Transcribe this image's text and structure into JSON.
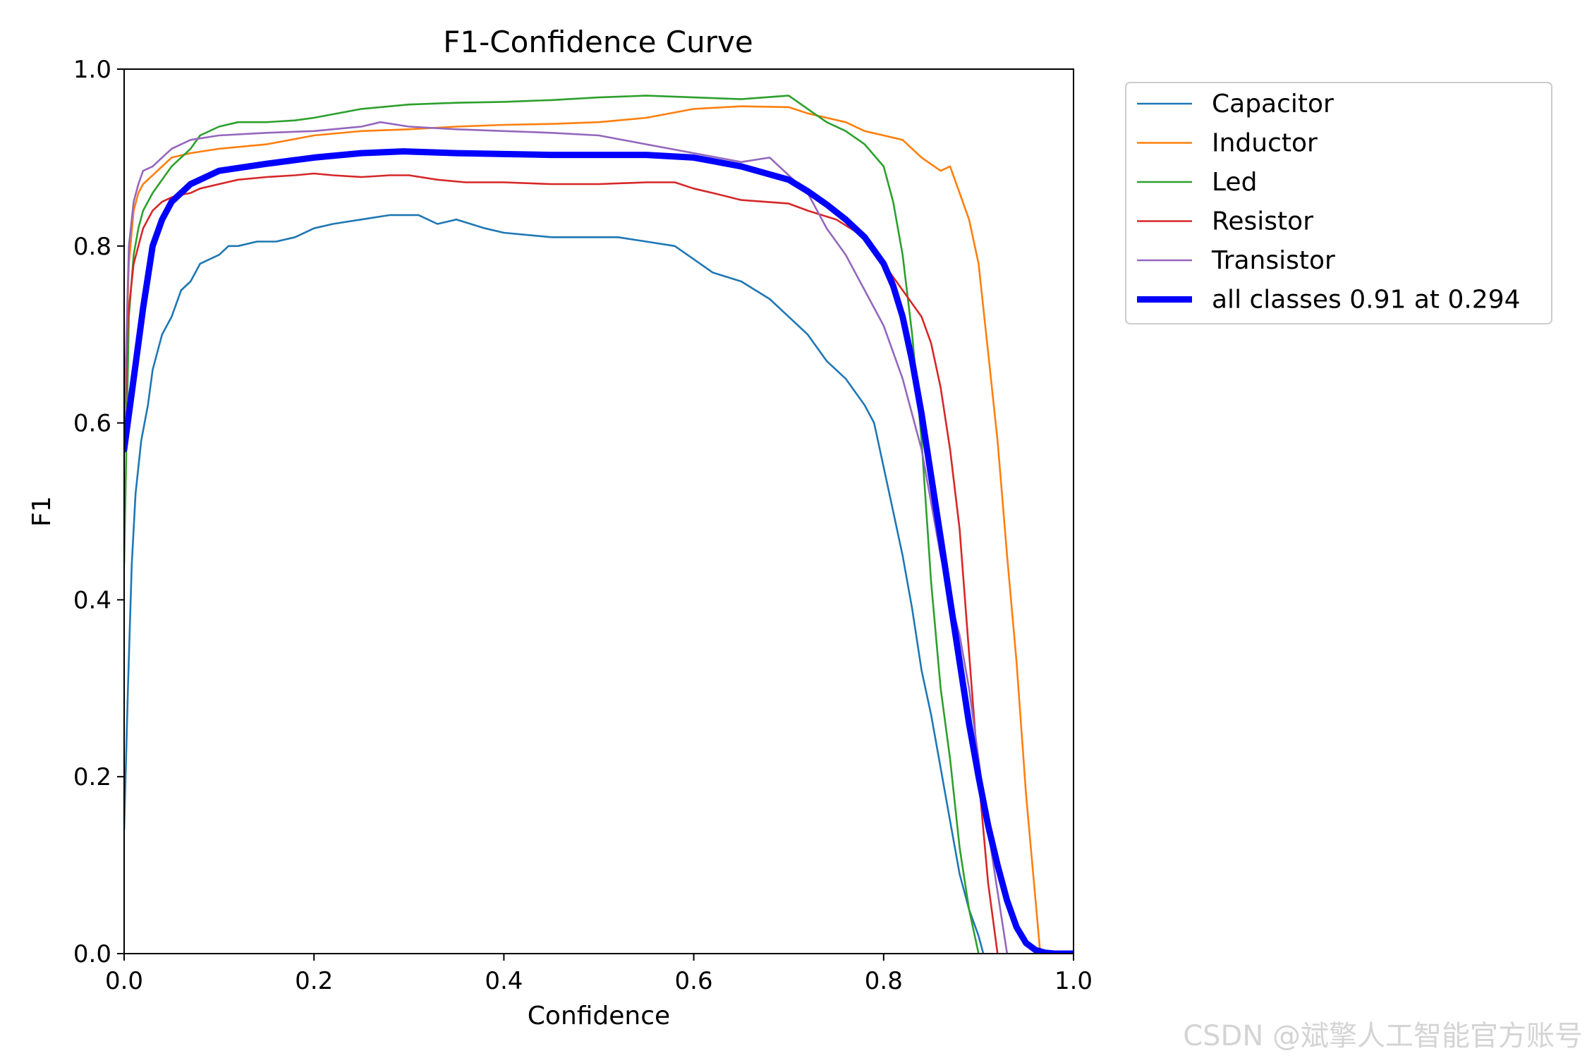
{
  "chart_data": {
    "type": "line",
    "title": "F1-Confidence Curve",
    "xlabel": "Confidence",
    "ylabel": "F1",
    "xlim": [
      0.0,
      1.0
    ],
    "ylim": [
      0.0,
      1.0
    ],
    "xticks": [
      "0.0",
      "0.2",
      "0.4",
      "0.6",
      "0.8",
      "1.0"
    ],
    "yticks": [
      "0.0",
      "0.2",
      "0.4",
      "0.6",
      "0.8",
      "1.0"
    ],
    "grid": false,
    "legend_position": "outside-top-right",
    "series": [
      {
        "name": "Capacitor",
        "color": "#1f77b4",
        "width": "thin",
        "x": [
          0.0,
          0.004,
          0.008,
          0.012,
          0.018,
          0.025,
          0.03,
          0.04,
          0.05,
          0.06,
          0.07,
          0.08,
          0.09,
          0.1,
          0.11,
          0.12,
          0.14,
          0.16,
          0.18,
          0.2,
          0.22,
          0.25,
          0.28,
          0.3,
          0.31,
          0.32,
          0.33,
          0.35,
          0.38,
          0.4,
          0.45,
          0.5,
          0.52,
          0.55,
          0.58,
          0.6,
          0.62,
          0.65,
          0.68,
          0.7,
          0.72,
          0.74,
          0.76,
          0.78,
          0.79,
          0.8,
          0.81,
          0.82,
          0.83,
          0.84,
          0.85,
          0.86,
          0.87,
          0.88,
          0.89,
          0.9,
          0.905
        ],
        "y": [
          0.14,
          0.3,
          0.44,
          0.52,
          0.58,
          0.62,
          0.66,
          0.7,
          0.72,
          0.75,
          0.76,
          0.78,
          0.785,
          0.79,
          0.8,
          0.8,
          0.805,
          0.805,
          0.81,
          0.82,
          0.825,
          0.83,
          0.835,
          0.835,
          0.835,
          0.83,
          0.825,
          0.83,
          0.82,
          0.815,
          0.81,
          0.81,
          0.81,
          0.805,
          0.8,
          0.785,
          0.77,
          0.76,
          0.74,
          0.72,
          0.7,
          0.67,
          0.65,
          0.62,
          0.6,
          0.55,
          0.5,
          0.45,
          0.39,
          0.32,
          0.27,
          0.21,
          0.15,
          0.09,
          0.05,
          0.02,
          0.0
        ]
      },
      {
        "name": "Inductor",
        "color": "#ff7f0e",
        "width": "thin",
        "x": [
          0.0,
          0.005,
          0.01,
          0.015,
          0.02,
          0.03,
          0.05,
          0.07,
          0.1,
          0.15,
          0.2,
          0.25,
          0.3,
          0.35,
          0.4,
          0.45,
          0.5,
          0.55,
          0.6,
          0.65,
          0.7,
          0.72,
          0.74,
          0.76,
          0.78,
          0.8,
          0.82,
          0.84,
          0.86,
          0.87,
          0.88,
          0.89,
          0.9,
          0.91,
          0.92,
          0.93,
          0.94,
          0.95,
          0.96,
          0.965
        ],
        "y": [
          0.6,
          0.78,
          0.84,
          0.86,
          0.87,
          0.88,
          0.9,
          0.905,
          0.91,
          0.915,
          0.925,
          0.93,
          0.932,
          0.935,
          0.937,
          0.938,
          0.94,
          0.945,
          0.955,
          0.958,
          0.957,
          0.95,
          0.945,
          0.94,
          0.93,
          0.925,
          0.92,
          0.9,
          0.885,
          0.89,
          0.86,
          0.83,
          0.78,
          0.68,
          0.58,
          0.45,
          0.33,
          0.18,
          0.06,
          0.0
        ]
      },
      {
        "name": "Led",
        "color": "#2ca02c",
        "width": "thin",
        "x": [
          0.0,
          0.005,
          0.01,
          0.015,
          0.02,
          0.03,
          0.05,
          0.07,
          0.08,
          0.1,
          0.12,
          0.15,
          0.18,
          0.2,
          0.25,
          0.3,
          0.35,
          0.4,
          0.45,
          0.5,
          0.55,
          0.6,
          0.65,
          0.7,
          0.72,
          0.74,
          0.76,
          0.78,
          0.8,
          0.81,
          0.82,
          0.83,
          0.84,
          0.85,
          0.86,
          0.87,
          0.88,
          0.89,
          0.9
        ],
        "y": [
          0.44,
          0.72,
          0.79,
          0.82,
          0.84,
          0.86,
          0.89,
          0.91,
          0.925,
          0.935,
          0.94,
          0.94,
          0.942,
          0.945,
          0.955,
          0.96,
          0.962,
          0.963,
          0.965,
          0.968,
          0.97,
          0.968,
          0.966,
          0.97,
          0.955,
          0.94,
          0.93,
          0.915,
          0.89,
          0.85,
          0.79,
          0.7,
          0.58,
          0.42,
          0.3,
          0.22,
          0.12,
          0.05,
          0.0
        ]
      },
      {
        "name": "Resistor",
        "color": "#d62728",
        "width": "thin",
        "x": [
          0.0,
          0.004,
          0.01,
          0.015,
          0.02,
          0.03,
          0.04,
          0.05,
          0.06,
          0.07,
          0.08,
          0.1,
          0.12,
          0.15,
          0.18,
          0.2,
          0.22,
          0.25,
          0.28,
          0.3,
          0.33,
          0.36,
          0.4,
          0.45,
          0.5,
          0.55,
          0.58,
          0.6,
          0.62,
          0.65,
          0.7,
          0.72,
          0.75,
          0.78,
          0.8,
          0.82,
          0.84,
          0.85,
          0.86,
          0.87,
          0.88,
          0.89,
          0.9,
          0.91,
          0.92
        ],
        "y": [
          0.58,
          0.72,
          0.78,
          0.8,
          0.82,
          0.84,
          0.85,
          0.855,
          0.858,
          0.86,
          0.865,
          0.87,
          0.875,
          0.878,
          0.88,
          0.882,
          0.88,
          0.878,
          0.88,
          0.88,
          0.875,
          0.872,
          0.872,
          0.87,
          0.87,
          0.872,
          0.872,
          0.865,
          0.86,
          0.852,
          0.848,
          0.84,
          0.83,
          0.81,
          0.78,
          0.75,
          0.72,
          0.69,
          0.64,
          0.57,
          0.48,
          0.34,
          0.2,
          0.08,
          0.0
        ]
      },
      {
        "name": "Transistor",
        "color": "#9467bd",
        "width": "thin",
        "x": [
          0.0,
          0.005,
          0.01,
          0.015,
          0.02,
          0.03,
          0.04,
          0.05,
          0.07,
          0.1,
          0.15,
          0.2,
          0.25,
          0.27,
          0.3,
          0.35,
          0.4,
          0.45,
          0.5,
          0.55,
          0.6,
          0.65,
          0.68,
          0.7,
          0.72,
          0.74,
          0.76,
          0.78,
          0.8,
          0.82,
          0.84,
          0.86,
          0.87,
          0.88,
          0.89,
          0.9,
          0.91,
          0.92,
          0.93
        ],
        "y": [
          0.6,
          0.8,
          0.85,
          0.87,
          0.885,
          0.89,
          0.9,
          0.91,
          0.92,
          0.925,
          0.928,
          0.93,
          0.935,
          0.94,
          0.935,
          0.932,
          0.93,
          0.928,
          0.925,
          0.915,
          0.905,
          0.895,
          0.9,
          0.88,
          0.86,
          0.82,
          0.79,
          0.75,
          0.71,
          0.65,
          0.57,
          0.45,
          0.4,
          0.36,
          0.3,
          0.22,
          0.14,
          0.07,
          0.0
        ]
      },
      {
        "name": "all classes 0.91 at 0.294",
        "color": "#0000ff",
        "width": "thick",
        "x": [
          0.0,
          0.01,
          0.02,
          0.03,
          0.04,
          0.05,
          0.07,
          0.1,
          0.15,
          0.2,
          0.25,
          0.294,
          0.35,
          0.4,
          0.45,
          0.5,
          0.55,
          0.6,
          0.65,
          0.7,
          0.72,
          0.74,
          0.76,
          0.78,
          0.8,
          0.81,
          0.82,
          0.83,
          0.84,
          0.85,
          0.86,
          0.87,
          0.88,
          0.89,
          0.9,
          0.91,
          0.92,
          0.93,
          0.94,
          0.95,
          0.96,
          0.97,
          0.98,
          0.99,
          1.0
        ],
        "y": [
          0.57,
          0.65,
          0.73,
          0.8,
          0.83,
          0.85,
          0.87,
          0.885,
          0.893,
          0.9,
          0.905,
          0.907,
          0.905,
          0.904,
          0.903,
          0.903,
          0.903,
          0.9,
          0.89,
          0.875,
          0.862,
          0.847,
          0.83,
          0.81,
          0.78,
          0.755,
          0.72,
          0.67,
          0.61,
          0.54,
          0.47,
          0.4,
          0.33,
          0.26,
          0.2,
          0.145,
          0.1,
          0.06,
          0.03,
          0.012,
          0.004,
          0.001,
          0.0,
          0.0,
          0.0
        ]
      }
    ]
  },
  "watermark": "CSDN @斌擎人工智能官方账号"
}
